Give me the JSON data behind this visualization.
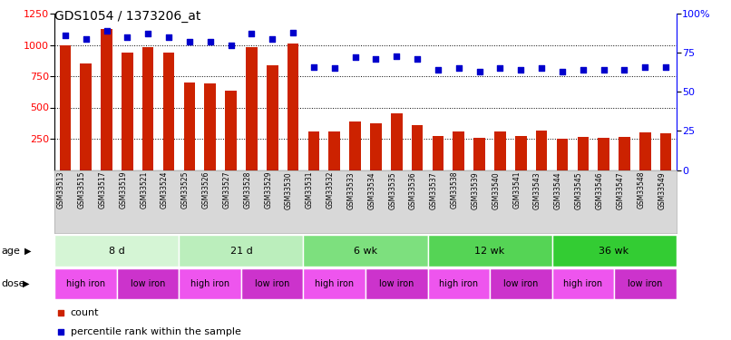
{
  "title": "GDS1054 / 1373206_at",
  "samples": [
    "GSM33513",
    "GSM33515",
    "GSM33517",
    "GSM33519",
    "GSM33521",
    "GSM33524",
    "GSM33525",
    "GSM33526",
    "GSM33527",
    "GSM33528",
    "GSM33529",
    "GSM33530",
    "GSM33531",
    "GSM33532",
    "GSM33533",
    "GSM33534",
    "GSM33535",
    "GSM33536",
    "GSM33537",
    "GSM33538",
    "GSM33539",
    "GSM33540",
    "GSM33541",
    "GSM33543",
    "GSM33544",
    "GSM33545",
    "GSM33546",
    "GSM33547",
    "GSM33548",
    "GSM33549"
  ],
  "counts": [
    1000,
    850,
    1130,
    940,
    980,
    940,
    700,
    695,
    635,
    980,
    840,
    1010,
    305,
    305,
    385,
    375,
    450,
    360,
    270,
    310,
    255,
    310,
    270,
    315,
    250,
    265,
    260,
    265,
    300,
    295
  ],
  "percentile": [
    86,
    84,
    89,
    85,
    87,
    85,
    82,
    82,
    80,
    87,
    84,
    88,
    66,
    65,
    72,
    71,
    73,
    71,
    64,
    65,
    63,
    65,
    64,
    65,
    63,
    64,
    64,
    64,
    66,
    66
  ],
  "age_groups": [
    {
      "label": "8 d",
      "start": 0,
      "end": 6
    },
    {
      "label": "21 d",
      "start": 6,
      "end": 12
    },
    {
      "label": "6 wk",
      "start": 12,
      "end": 18
    },
    {
      "label": "12 wk",
      "start": 18,
      "end": 24
    },
    {
      "label": "36 wk",
      "start": 24,
      "end": 30
    }
  ],
  "age_colors": [
    "#d5f5d5",
    "#bbeebc",
    "#7de07e",
    "#55d455",
    "#33cc33"
  ],
  "dose_groups": [
    {
      "label": "high iron",
      "start": 0,
      "end": 3
    },
    {
      "label": "low iron",
      "start": 3,
      "end": 6
    },
    {
      "label": "high iron",
      "start": 6,
      "end": 9
    },
    {
      "label": "low iron",
      "start": 9,
      "end": 12
    },
    {
      "label": "high iron",
      "start": 12,
      "end": 15
    },
    {
      "label": "low iron",
      "start": 15,
      "end": 18
    },
    {
      "label": "high iron",
      "start": 18,
      "end": 21
    },
    {
      "label": "low iron",
      "start": 21,
      "end": 24
    },
    {
      "label": "high iron",
      "start": 24,
      "end": 27
    },
    {
      "label": "low iron",
      "start": 27,
      "end": 30
    }
  ],
  "dose_colors": {
    "high iron": "#ee55ee",
    "low iron": "#cc33cc"
  },
  "bar_color": "#cc2200",
  "dot_color": "#0000cc",
  "ylim_left": [
    0,
    1250
  ],
  "ylim_right": [
    0,
    100
  ],
  "yticks_left": [
    250,
    500,
    750,
    1000,
    1250
  ],
  "yticks_right": [
    0,
    25,
    50,
    75,
    100
  ],
  "bg_color": "#ffffff",
  "title_fontsize": 10,
  "tick_fontsize": 7,
  "label_fontsize": 8
}
